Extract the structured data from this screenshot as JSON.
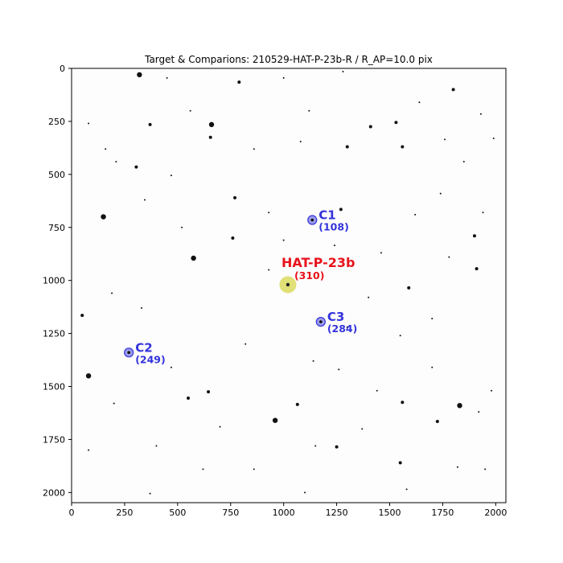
{
  "chart_data": {
    "type": "scatter",
    "title": "Target & Comparions: 210529-HAT-P-23b-R / R_AP=10.0 pix",
    "xlabel": "",
    "ylabel": "",
    "xlim": [
      0,
      2048
    ],
    "ylim": [
      2048,
      0
    ],
    "y_inverted": true,
    "grid": false,
    "xticks": [
      0,
      250,
      500,
      750,
      1000,
      1250,
      1500,
      1750,
      2000
    ],
    "yticks": [
      0,
      250,
      500,
      750,
      1000,
      1250,
      1500,
      1750,
      2000
    ],
    "series": [
      {
        "name": "HAT-P-23b",
        "role": "target",
        "color": "#e8131b",
        "marker_color": "#d6d64a",
        "points": [
          {
            "x": 1020,
            "y": 1020,
            "label": "HAT-P-23b",
            "value": "(310)"
          }
        ]
      },
      {
        "name": "C1",
        "role": "comparison",
        "color": "#3333dd",
        "points": [
          {
            "x": 1135,
            "y": 715,
            "label": "C1",
            "value": "(108)"
          },
          {
            "x": 270,
            "y": 1340,
            "label": "C2",
            "value": "(249)"
          },
          {
            "x": 1175,
            "y": 1195,
            "label": "C3",
            "value": "(284)"
          }
        ]
      }
    ],
    "background_stars": [
      {
        "x": 320,
        "y": 30,
        "m": 3
      },
      {
        "x": 450,
        "y": 45,
        "m": 1
      },
      {
        "x": 790,
        "y": 65,
        "m": 2
      },
      {
        "x": 1000,
        "y": 45,
        "m": 1
      },
      {
        "x": 1280,
        "y": 15,
        "m": 1
      },
      {
        "x": 1800,
        "y": 100,
        "m": 2
      },
      {
        "x": 1530,
        "y": 255,
        "m": 2
      },
      {
        "x": 1410,
        "y": 275,
        "m": 2
      },
      {
        "x": 660,
        "y": 265,
        "m": 3
      },
      {
        "x": 370,
        "y": 265,
        "m": 2
      },
      {
        "x": 1080,
        "y": 345,
        "m": 1
      },
      {
        "x": 1300,
        "y": 370,
        "m": 2
      },
      {
        "x": 1560,
        "y": 370,
        "m": 2
      },
      {
        "x": 1760,
        "y": 335,
        "m": 1
      },
      {
        "x": 1990,
        "y": 330,
        "m": 1
      },
      {
        "x": 305,
        "y": 465,
        "m": 2
      },
      {
        "x": 470,
        "y": 505,
        "m": 1
      },
      {
        "x": 1850,
        "y": 440,
        "m": 1
      },
      {
        "x": 655,
        "y": 325,
        "m": 2
      },
      {
        "x": 770,
        "y": 610,
        "m": 2
      },
      {
        "x": 1270,
        "y": 665,
        "m": 2
      },
      {
        "x": 150,
        "y": 700,
        "m": 3
      },
      {
        "x": 345,
        "y": 620,
        "m": 1
      },
      {
        "x": 1740,
        "y": 590,
        "m": 1
      },
      {
        "x": 760,
        "y": 800,
        "m": 2
      },
      {
        "x": 1900,
        "y": 790,
        "m": 2
      },
      {
        "x": 575,
        "y": 895,
        "m": 3
      },
      {
        "x": 1910,
        "y": 945,
        "m": 2
      },
      {
        "x": 1590,
        "y": 1035,
        "m": 2
      },
      {
        "x": 330,
        "y": 1130,
        "m": 1
      },
      {
        "x": 50,
        "y": 1165,
        "m": 2
      },
      {
        "x": 1550,
        "y": 1260,
        "m": 1
      },
      {
        "x": 80,
        "y": 1450,
        "m": 3
      },
      {
        "x": 645,
        "y": 1525,
        "m": 2
      },
      {
        "x": 550,
        "y": 1555,
        "m": 2
      },
      {
        "x": 1065,
        "y": 1585,
        "m": 2
      },
      {
        "x": 1560,
        "y": 1575,
        "m": 2
      },
      {
        "x": 1830,
        "y": 1590,
        "m": 3
      },
      {
        "x": 960,
        "y": 1660,
        "m": 3
      },
      {
        "x": 1725,
        "y": 1665,
        "m": 2
      },
      {
        "x": 1920,
        "y": 1620,
        "m": 1
      },
      {
        "x": 1250,
        "y": 1785,
        "m": 2
      },
      {
        "x": 1150,
        "y": 1780,
        "m": 1
      },
      {
        "x": 1550,
        "y": 1860,
        "m": 2
      },
      {
        "x": 1950,
        "y": 1890,
        "m": 1
      },
      {
        "x": 370,
        "y": 2005,
        "m": 1
      },
      {
        "x": 1100,
        "y": 2000,
        "m": 1
      },
      {
        "x": 1580,
        "y": 1985,
        "m": 1
      },
      {
        "x": 860,
        "y": 1890,
        "m": 1
      },
      {
        "x": 80,
        "y": 1800,
        "m": 1
      },
      {
        "x": 1440,
        "y": 1520,
        "m": 1
      },
      {
        "x": 1980,
        "y": 1520,
        "m": 1
      },
      {
        "x": 700,
        "y": 1690,
        "m": 1
      },
      {
        "x": 200,
        "y": 1580,
        "m": 1
      },
      {
        "x": 1300,
        "y": 1220,
        "m": 1
      },
      {
        "x": 1400,
        "y": 1080,
        "m": 1
      },
      {
        "x": 1700,
        "y": 1180,
        "m": 1
      },
      {
        "x": 190,
        "y": 1060,
        "m": 1
      },
      {
        "x": 930,
        "y": 950,
        "m": 1
      },
      {
        "x": 1460,
        "y": 870,
        "m": 1
      },
      {
        "x": 1780,
        "y": 890,
        "m": 1
      },
      {
        "x": 520,
        "y": 750,
        "m": 1
      },
      {
        "x": 930,
        "y": 680,
        "m": 1
      },
      {
        "x": 1240,
        "y": 835,
        "m": 1
      },
      {
        "x": 1620,
        "y": 690,
        "m": 1
      },
      {
        "x": 1940,
        "y": 680,
        "m": 1
      },
      {
        "x": 210,
        "y": 440,
        "m": 1
      },
      {
        "x": 560,
        "y": 200,
        "m": 1
      },
      {
        "x": 860,
        "y": 380,
        "m": 1
      },
      {
        "x": 1120,
        "y": 200,
        "m": 1
      },
      {
        "x": 1640,
        "y": 160,
        "m": 1
      },
      {
        "x": 1930,
        "y": 215,
        "m": 1
      },
      {
        "x": 160,
        "y": 380,
        "m": 1
      },
      {
        "x": 80,
        "y": 260,
        "m": 1
      },
      {
        "x": 1000,
        "y": 810,
        "m": 1
      },
      {
        "x": 1140,
        "y": 1380,
        "m": 1
      },
      {
        "x": 820,
        "y": 1300,
        "m": 1
      },
      {
        "x": 470,
        "y": 1410,
        "m": 1
      },
      {
        "x": 1260,
        "y": 1420,
        "m": 1
      },
      {
        "x": 1370,
        "y": 1700,
        "m": 1
      },
      {
        "x": 620,
        "y": 1890,
        "m": 1
      },
      {
        "x": 1820,
        "y": 1880,
        "m": 1
      },
      {
        "x": 400,
        "y": 1780,
        "m": 1
      },
      {
        "x": 1700,
        "y": 1410,
        "m": 1
      }
    ]
  }
}
